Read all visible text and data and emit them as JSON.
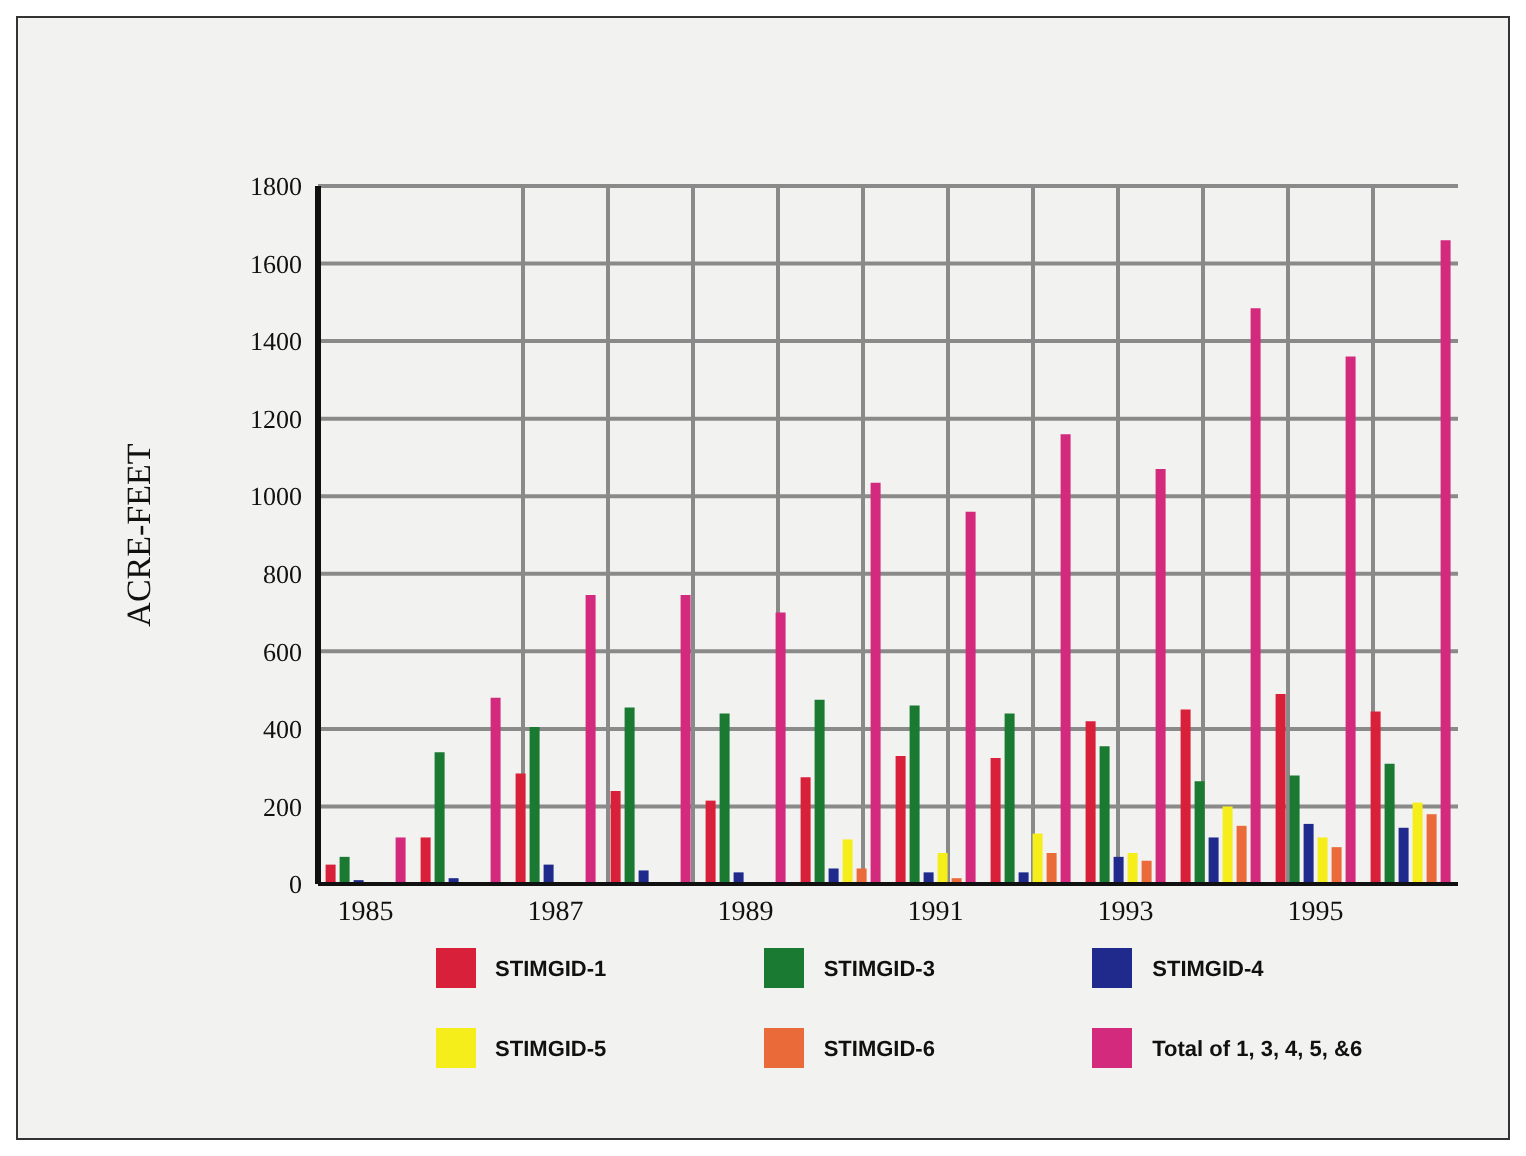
{
  "chart_data": {
    "type": "bar",
    "ylabel": "ACRE-FEET",
    "categories": [
      "1985",
      null,
      "1987",
      null,
      "1989",
      null,
      "1991",
      null,
      "1993",
      null,
      "1995",
      null
    ],
    "series": [
      {
        "name": "STIMGID-1",
        "color": "#d9203a",
        "values": [
          50,
          120,
          285,
          240,
          215,
          275,
          330,
          325,
          420,
          450,
          490,
          445
        ]
      },
      {
        "name": "STIMGID-3",
        "color": "#1a7a32",
        "values": [
          70,
          340,
          405,
          455,
          440,
          475,
          460,
          440,
          355,
          265,
          280,
          310
        ]
      },
      {
        "name": "STIMGID-4",
        "color": "#1f2a8c",
        "values": [
          10,
          15,
          50,
          35,
          30,
          40,
          30,
          30,
          70,
          120,
          155,
          145
        ]
      },
      {
        "name": "STIMGID-5",
        "color": "#f5ee1a",
        "values": [
          0,
          0,
          0,
          0,
          0,
          115,
          80,
          130,
          80,
          200,
          120,
          210
        ]
      },
      {
        "name": "STIMGID-6",
        "color": "#ea6a3a",
        "values": [
          0,
          0,
          0,
          0,
          0,
          40,
          15,
          80,
          60,
          150,
          95,
          180
        ]
      },
      {
        "name": "Total of 1, 3, 4, 5, &6",
        "color": "#d42a7e",
        "values": [
          120,
          480,
          745,
          745,
          700,
          1035,
          960,
          1160,
          1070,
          1485,
          1360,
          1660
        ]
      }
    ],
    "ylim": [
      0,
      1800
    ],
    "yticks": [
      0,
      200,
      400,
      600,
      800,
      1000,
      1200,
      1400,
      1600,
      1800
    ],
    "grid": true,
    "legend": "bottom"
  }
}
